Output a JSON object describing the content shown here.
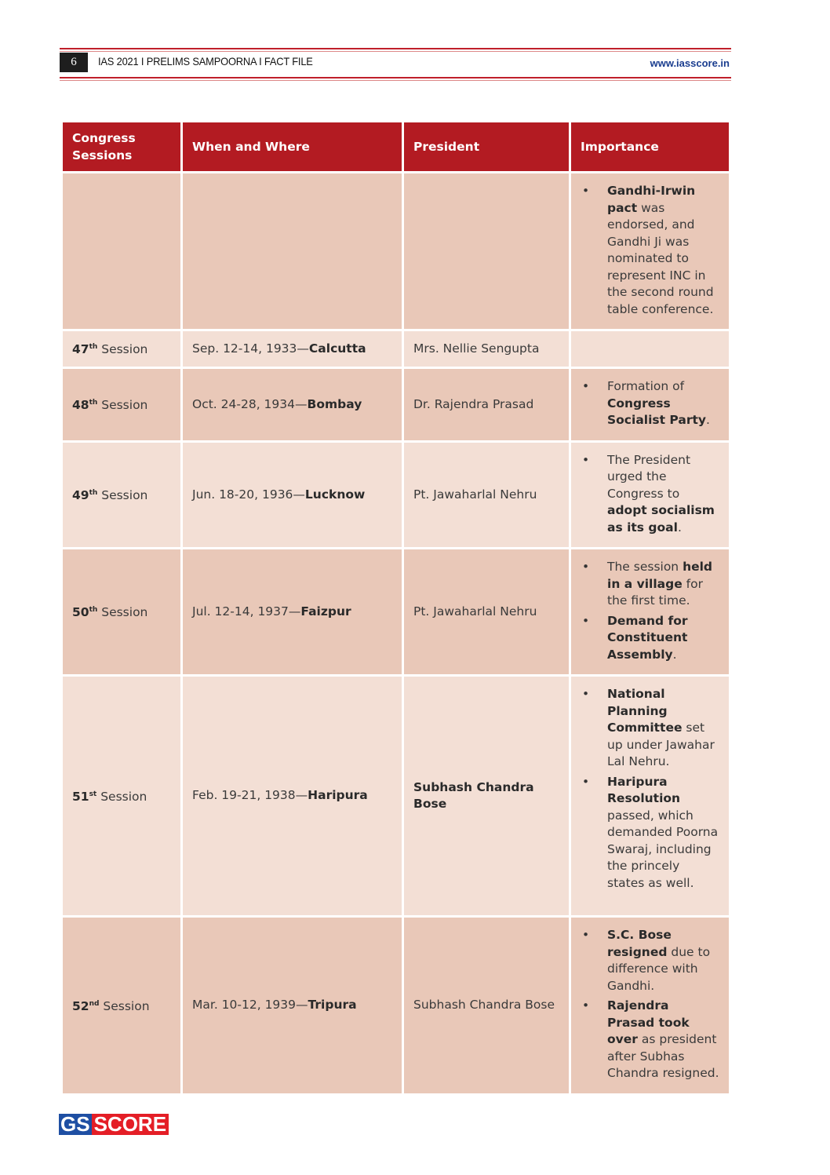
{
  "header": {
    "page_number": "6",
    "title": "IAS 2021 I  PRELIMS SAMPOORNA  I FACT FILE",
    "url": "www.iasscore.in"
  },
  "table": {
    "columns": [
      "Congress Sessions",
      "When and Where",
      "President",
      "Importance"
    ],
    "rows": [
      {
        "tone": "dark",
        "session": null,
        "date": "",
        "place": "",
        "president": "",
        "president_bold": false,
        "importance": [
          [
            {
              "t": "Gandhi-Irwin pact",
              "b": true
            },
            {
              "t": " was endorsed, and Gandhi Ji was nominated to represent INC in the second round table conference.",
              "b": false
            }
          ]
        ]
      },
      {
        "tone": "light",
        "session": {
          "num": "47",
          "sup": "th",
          "label": "Session"
        },
        "date": "Sep. 12-14, 1933—",
        "place": "Calcutta",
        "president": "Mrs. Nellie Sengupta",
        "president_bold": false,
        "importance": []
      },
      {
        "tone": "dark",
        "session": {
          "num": "48",
          "sup": "th",
          "label": "Session"
        },
        "date": "Oct. 24-28, 1934—",
        "place": "Bombay",
        "president": "Dr. Rajendra Prasad",
        "president_bold": false,
        "importance": [
          [
            {
              "t": "Formation of ",
              "b": false
            },
            {
              "t": "Congress Socialist Party",
              "b": true
            },
            {
              "t": ".",
              "b": false
            }
          ]
        ]
      },
      {
        "tone": "light",
        "session": {
          "num": "49",
          "sup": "th",
          "label": "Session"
        },
        "date": "Jun. 18-20, 1936—",
        "place": "Lucknow",
        "president": "Pt. Jawaharlal Nehru",
        "president_bold": false,
        "importance": [
          [
            {
              "t": "The President urged the Congress to ",
              "b": false
            },
            {
              "t": "adopt socialism as its goal",
              "b": true
            },
            {
              "t": ".",
              "b": false
            }
          ]
        ]
      },
      {
        "tone": "dark",
        "session": {
          "num": "50",
          "sup": "th",
          "label": "Session"
        },
        "date": "Jul. 12-14, 1937—",
        "place": "Faizpur",
        "president": "Pt. Jawaharlal Nehru",
        "president_bold": false,
        "importance": [
          [
            {
              "t": "The session ",
              "b": false
            },
            {
              "t": "held in a village",
              "b": true
            },
            {
              "t": " for the first time.",
              "b": false
            }
          ],
          [
            {
              "t": "Demand for Constituent Assembly",
              "b": true
            },
            {
              "t": ".",
              "b": false
            }
          ]
        ]
      },
      {
        "tone": "light",
        "session": {
          "num": "51",
          "sup": "st",
          "label": "Session"
        },
        "date": "Feb. 19-21, 1938—",
        "place": "Haripura",
        "president": "Subhash Chandra Bose",
        "president_bold": true,
        "importance": [
          [
            {
              "t": "National Planning Committee",
              "b": true
            },
            {
              "t": " set up under Jawahar Lal Nehru.",
              "b": false
            }
          ],
          [
            {
              "t": "Haripura Resolution",
              "b": true
            },
            {
              "t": " passed, which demanded Poorna Swaraj, including the princely states as well.",
              "b": false
            }
          ]
        ]
      },
      {
        "tone": "dark",
        "session": {
          "num": "52",
          "sup": "nd",
          "label": "Session"
        },
        "date": "Mar. 10-12, 1939—",
        "place": "Tripura",
        "president": "Subhash Chandra Bose",
        "president_bold": false,
        "importance": [
          [
            {
              "t": "S.C. Bose resigned",
              "b": true
            },
            {
              "t": " due to difference with Gandhi.",
              "b": false
            }
          ],
          [
            {
              "t": "Rajendra Prasad took over",
              "b": true
            },
            {
              "t": " as president after Subhas Chandra resigned.",
              "b": false
            }
          ]
        ]
      }
    ]
  },
  "footer": {
    "logo_gs": "GS",
    "logo_score": "SCORE"
  },
  "colors": {
    "header_red": "#b31b22",
    "row_dark": "#e9c8b8",
    "row_light": "#f3dfd5",
    "url_blue": "#1a3d8f"
  }
}
